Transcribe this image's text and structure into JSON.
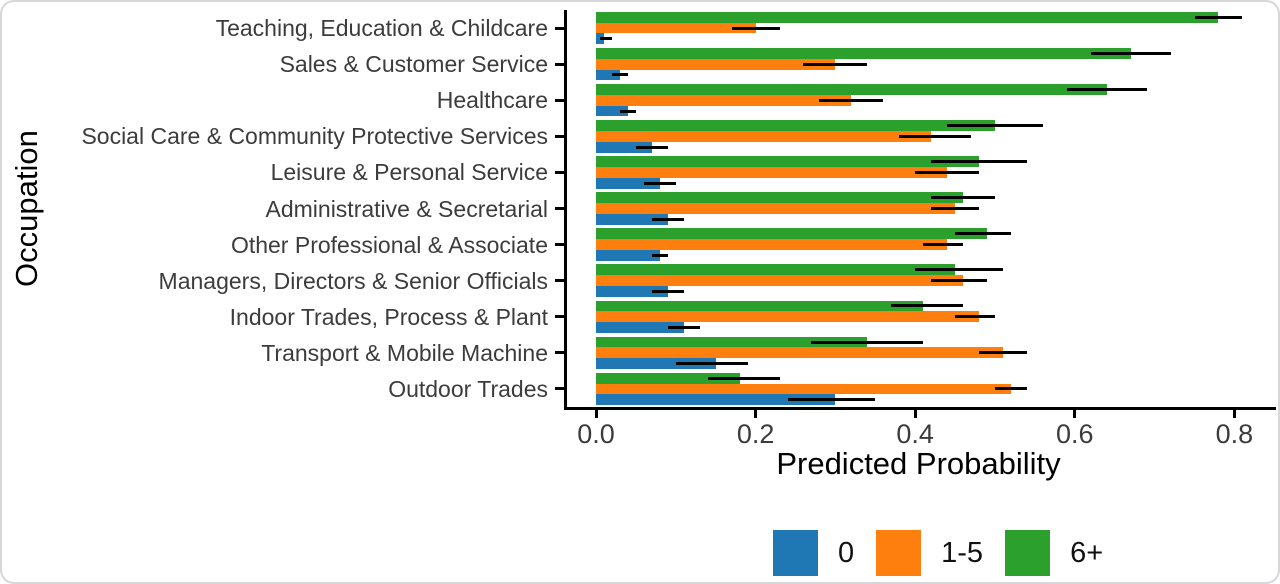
{
  "chart_data": {
    "type": "bar",
    "orientation": "horizontal",
    "title": "",
    "xlabel": "Predicted Probability",
    "ylabel": "Occupation",
    "xlim": [
      0,
      0.85
    ],
    "x_ticks": [
      0.0,
      0.2,
      0.4,
      0.6,
      0.8
    ],
    "x_tick_labels": [
      "0.0",
      "0.2",
      "0.4",
      "0.6",
      "0.8"
    ],
    "grid": false,
    "error_bars": true,
    "categories": [
      "Teaching, Education & Childcare",
      "Sales & Customer Service",
      "Healthcare",
      "Social Care & Community Protective Services",
      "Leisure & Personal Service",
      "Administrative & Secretarial",
      "Other Professional & Associate",
      "Managers, Directors & Senior Officials",
      "Indoor Trades, Process & Plant",
      "Transport & Mobile Machine",
      "Outdoor Trades"
    ],
    "series": [
      {
        "key": "six-plus",
        "name": "6+",
        "color": "#2ca02c",
        "values": [
          0.78,
          0.67,
          0.64,
          0.5,
          0.48,
          0.46,
          0.49,
          0.45,
          0.41,
          0.34,
          0.18
        ],
        "ci_low": [
          0.75,
          0.62,
          0.59,
          0.44,
          0.42,
          0.42,
          0.45,
          0.4,
          0.37,
          0.27,
          0.14
        ],
        "ci_high": [
          0.81,
          0.72,
          0.69,
          0.56,
          0.54,
          0.5,
          0.52,
          0.51,
          0.46,
          0.41,
          0.23
        ]
      },
      {
        "key": "one-to-five",
        "name": "1-5",
        "color": "#ff7f0e",
        "values": [
          0.2,
          0.3,
          0.32,
          0.42,
          0.44,
          0.45,
          0.44,
          0.46,
          0.48,
          0.51,
          0.52
        ],
        "ci_low": [
          0.17,
          0.26,
          0.28,
          0.38,
          0.4,
          0.42,
          0.41,
          0.42,
          0.45,
          0.48,
          0.5
        ],
        "ci_high": [
          0.23,
          0.34,
          0.36,
          0.47,
          0.48,
          0.48,
          0.46,
          0.49,
          0.5,
          0.54,
          0.54
        ]
      },
      {
        "key": "zero",
        "name": "0",
        "color": "#1f77b4",
        "values": [
          0.01,
          0.03,
          0.04,
          0.07,
          0.08,
          0.09,
          0.08,
          0.09,
          0.11,
          0.15,
          0.3
        ],
        "ci_low": [
          0.005,
          0.02,
          0.03,
          0.05,
          0.06,
          0.07,
          0.07,
          0.07,
          0.09,
          0.1,
          0.24
        ],
        "ci_high": [
          0.02,
          0.04,
          0.05,
          0.09,
          0.1,
          0.11,
          0.09,
          0.11,
          0.13,
          0.19,
          0.35
        ]
      }
    ],
    "legend": {
      "position": "bottom",
      "entries": [
        {
          "key": "zero",
          "label": "0",
          "color": "#1f77b4"
        },
        {
          "key": "one-to-five",
          "label": "1-5",
          "color": "#ff7f0e"
        },
        {
          "key": "six-plus",
          "label": "6+",
          "color": "#2ca02c"
        }
      ]
    }
  }
}
